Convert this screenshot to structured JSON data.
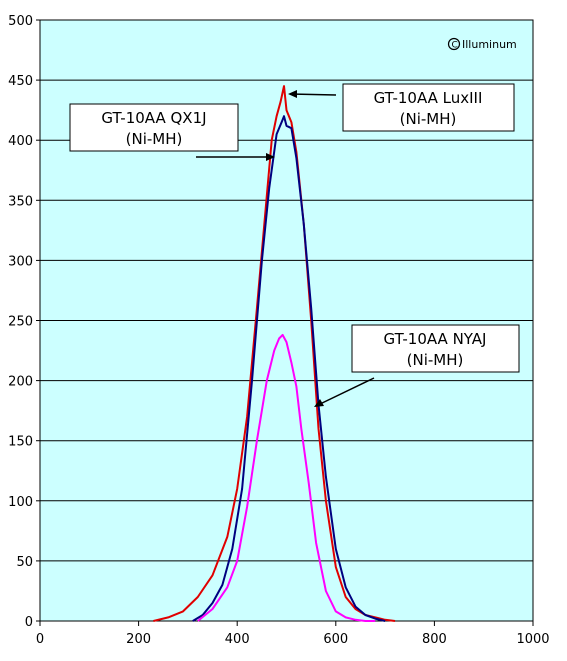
{
  "chart_data": {
    "type": "line",
    "watermark": "Illuminum",
    "xlim": [
      0,
      1000
    ],
    "ylim": [
      0,
      500
    ],
    "xticks": [
      0,
      200,
      400,
      600,
      800,
      1000
    ],
    "yticks": [
      0,
      50,
      100,
      150,
      200,
      250,
      300,
      350,
      400,
      450,
      500
    ],
    "grid": "horizontal",
    "plot_background": "#ccffff",
    "series": [
      {
        "label": [
          "GT-10AA LuxIII",
          "(Ni-MH)"
        ],
        "color": "#e00000",
        "x": [
          230,
          260,
          290,
          320,
          350,
          380,
          400,
          420,
          440,
          455,
          470,
          480,
          488,
          495,
          500,
          510,
          520,
          535,
          550,
          565,
          580,
          600,
          620,
          640,
          660,
          680,
          700,
          720
        ],
        "y": [
          0,
          3,
          8,
          20,
          38,
          70,
          110,
          170,
          260,
          330,
          400,
          420,
          432,
          445,
          425,
          415,
          390,
          330,
          250,
          160,
          100,
          45,
          20,
          10,
          5,
          3,
          1,
          0
        ]
      },
      {
        "label": [
          "GT-10AA QX1J",
          "(Ni-MH)"
        ],
        "color": "#000080",
        "x": [
          310,
          330,
          350,
          370,
          390,
          410,
          430,
          450,
          465,
          480,
          490,
          495,
          500,
          510,
          520,
          535,
          550,
          565,
          580,
          600,
          620,
          640,
          660,
          680,
          700
        ],
        "y": [
          0,
          5,
          15,
          30,
          60,
          110,
          200,
          300,
          360,
          405,
          415,
          420,
          412,
          410,
          385,
          330,
          260,
          180,
          120,
          60,
          28,
          12,
          5,
          2,
          0
        ]
      },
      {
        "label": [
          "GT-10AA NYAJ",
          "(Ni-MH)"
        ],
        "color": "#ff00ff",
        "x": [
          320,
          350,
          380,
          400,
          420,
          440,
          460,
          475,
          485,
          492,
          500,
          510,
          520,
          530,
          545,
          560,
          580,
          600,
          620,
          640,
          660,
          680
        ],
        "y": [
          0,
          10,
          28,
          50,
          95,
          150,
          200,
          225,
          235,
          238,
          232,
          215,
          195,
          160,
          115,
          65,
          25,
          8,
          3,
          1,
          0,
          0
        ]
      }
    ]
  }
}
